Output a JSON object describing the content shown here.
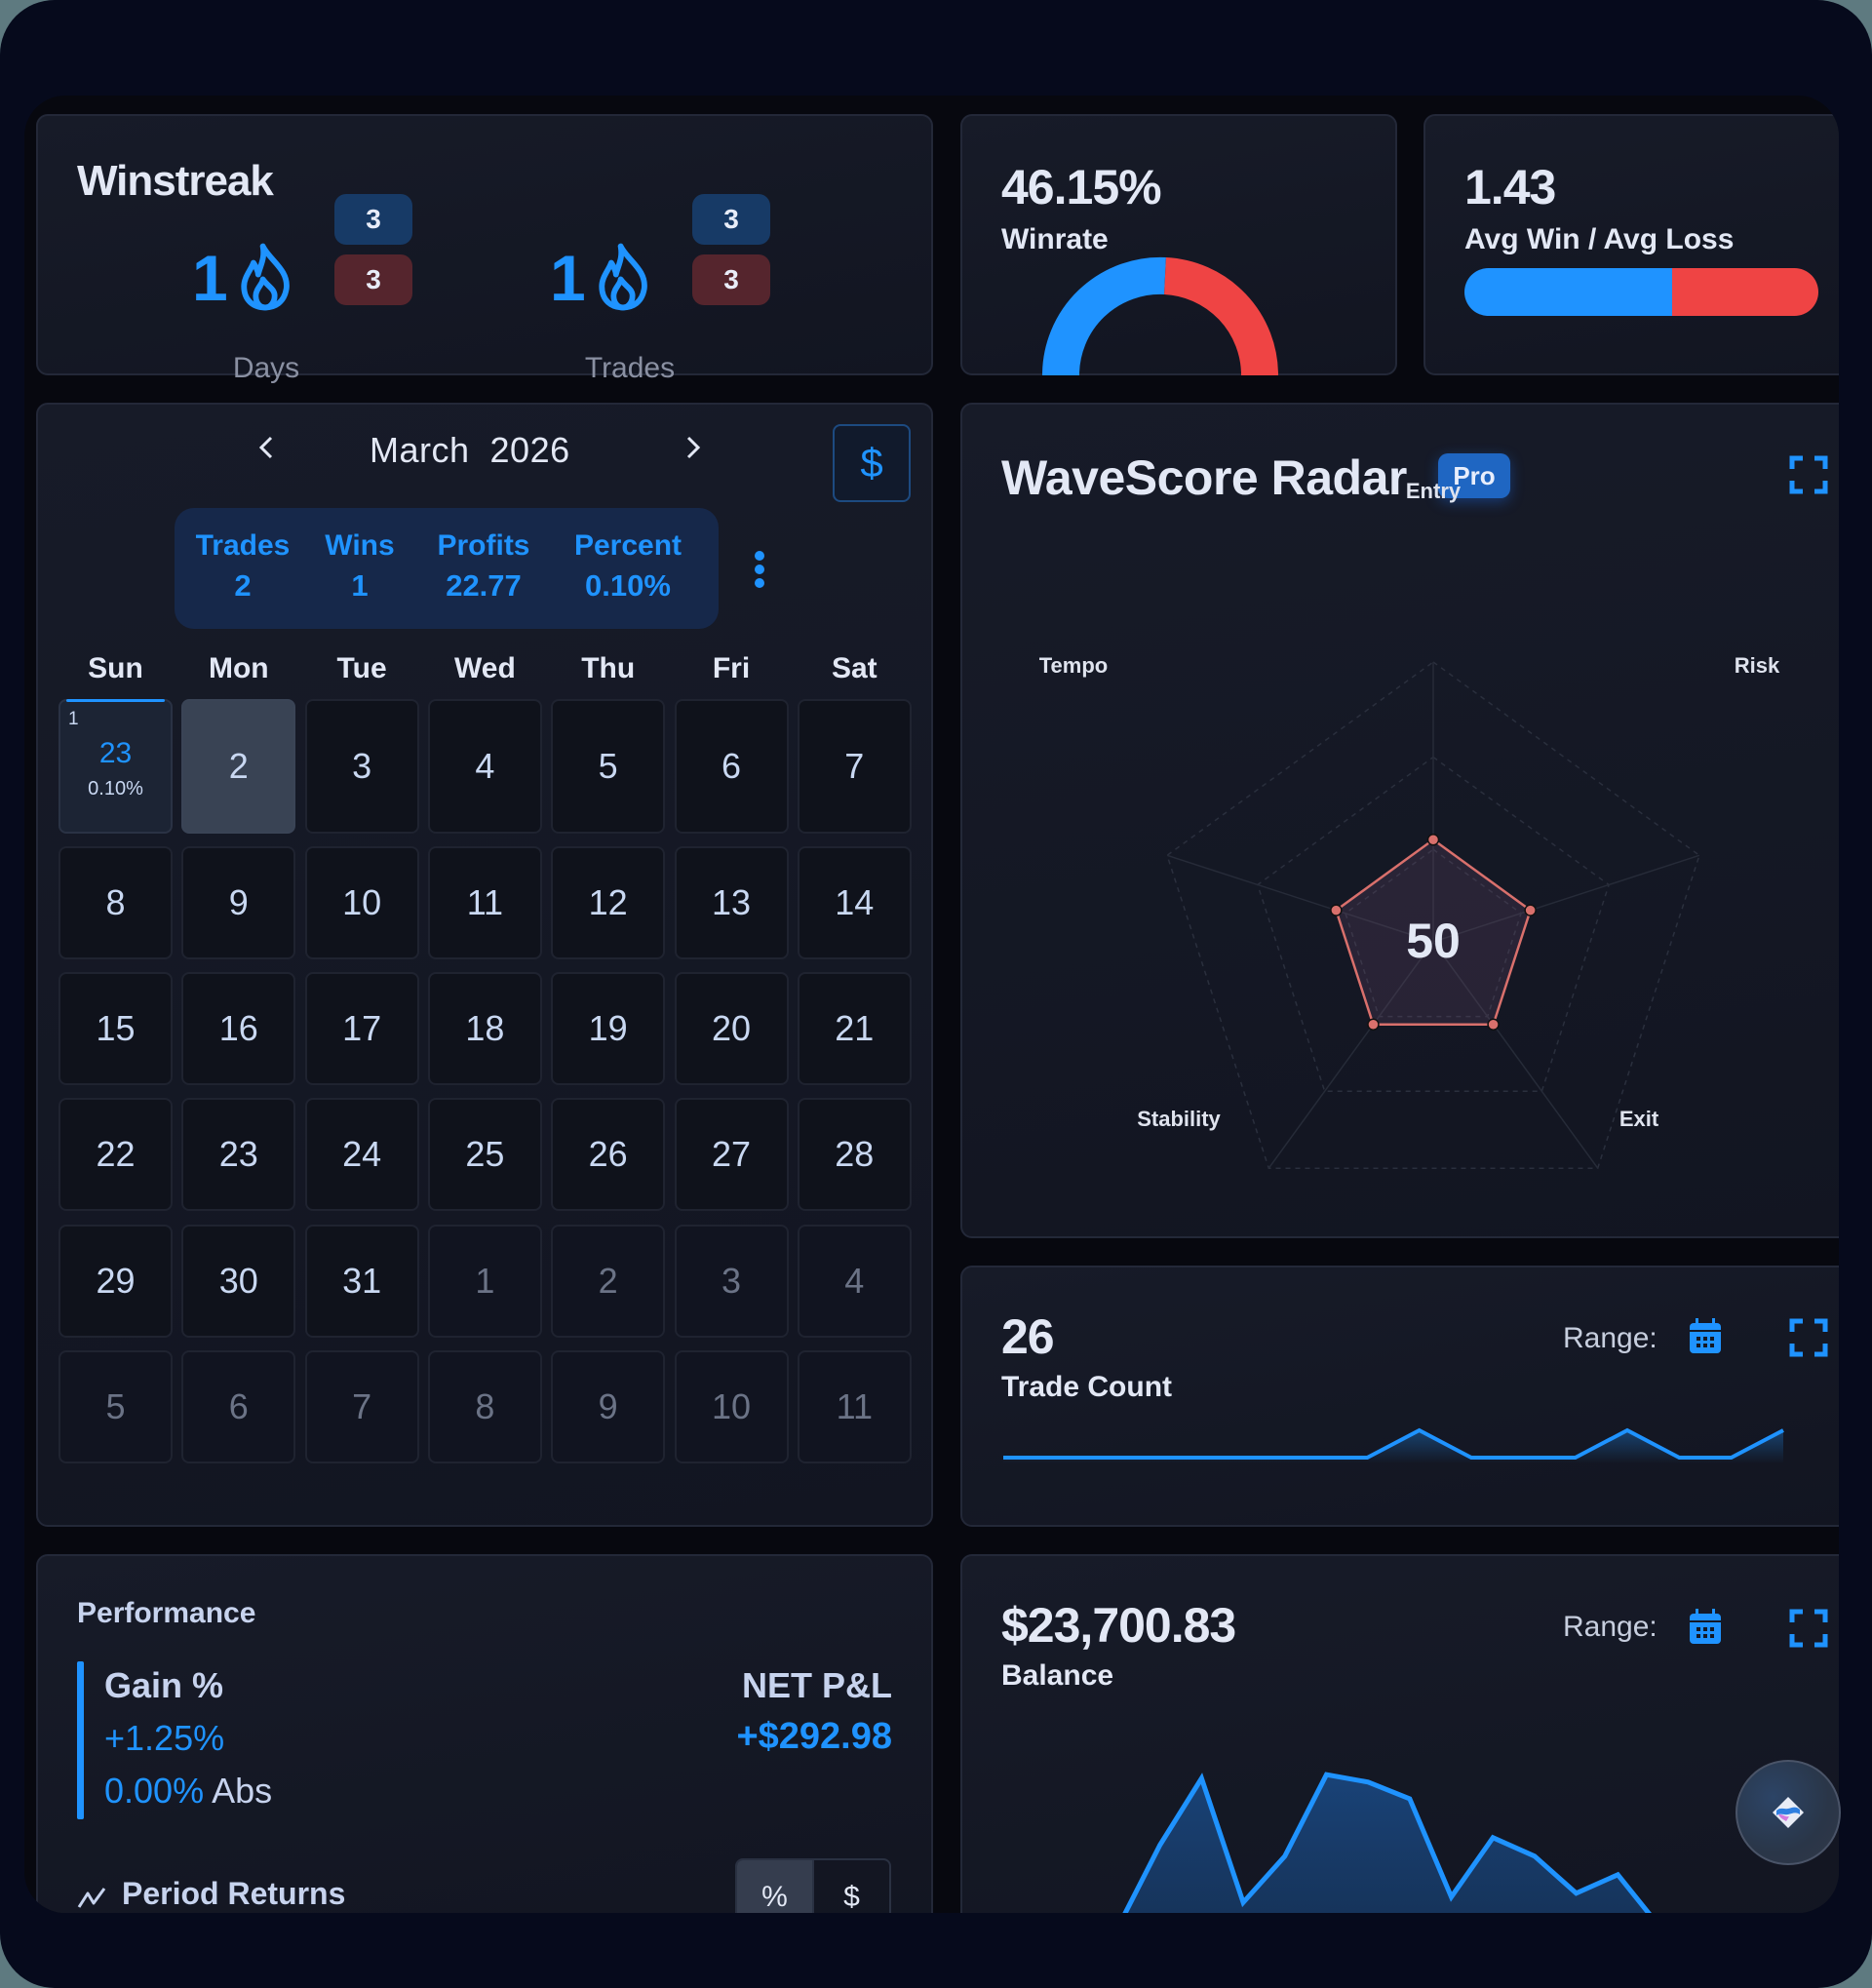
{
  "colors": {
    "accent": "#1f93ff",
    "loss": "#ef4444",
    "card_bg": "#141824",
    "frame_bg": "#060a1c",
    "radar_stroke": "#d9706c"
  },
  "winstreak": {
    "title": "Winstreak",
    "days": {
      "value": "1",
      "wins_badge": "3",
      "losses_badge": "3",
      "label": "Days"
    },
    "trades": {
      "value": "1",
      "wins_badge": "3",
      "losses_badge": "3",
      "label": "Trades"
    }
  },
  "winrate": {
    "value": "46.15%",
    "label": "Winrate",
    "win_pct": 46.15
  },
  "avg_win_loss": {
    "value": "1.43",
    "label": "Avg Win / Avg Loss",
    "win_share_pct": 58.8
  },
  "calendar": {
    "month_label": "March  2026",
    "prev_icon": "chevron-left-icon",
    "next_icon": "chevron-right-icon",
    "currency_toggle": "$",
    "summary": {
      "trades": {
        "label": "Trades",
        "value": "2"
      },
      "wins": {
        "label": "Wins",
        "value": "1"
      },
      "profits": {
        "label": "Profits",
        "value": "22.77"
      },
      "percent": {
        "label": "Percent",
        "value": "0.10%"
      }
    },
    "weekdays": [
      "Sun",
      "Mon",
      "Tue",
      "Wed",
      "Thu",
      "Fri",
      "Sat"
    ],
    "weeks": [
      [
        {
          "day": "1",
          "profit": "23",
          "percent": "0.10%",
          "type": "data"
        },
        {
          "day": "2",
          "type": "selected"
        },
        {
          "day": "3",
          "type": "current"
        },
        {
          "day": "4",
          "type": "current"
        },
        {
          "day": "5",
          "type": "current"
        },
        {
          "day": "6",
          "type": "current"
        },
        {
          "day": "7",
          "type": "current"
        }
      ],
      [
        {
          "day": "8",
          "type": "current"
        },
        {
          "day": "9",
          "type": "current"
        },
        {
          "day": "10",
          "type": "current"
        },
        {
          "day": "11",
          "type": "current"
        },
        {
          "day": "12",
          "type": "current"
        },
        {
          "day": "13",
          "type": "current"
        },
        {
          "day": "14",
          "type": "current"
        }
      ],
      [
        {
          "day": "15",
          "type": "current"
        },
        {
          "day": "16",
          "type": "current"
        },
        {
          "day": "17",
          "type": "current"
        },
        {
          "day": "18",
          "type": "current"
        },
        {
          "day": "19",
          "type": "current"
        },
        {
          "day": "20",
          "type": "current"
        },
        {
          "day": "21",
          "type": "current"
        }
      ],
      [
        {
          "day": "22",
          "type": "current"
        },
        {
          "day": "23",
          "type": "current"
        },
        {
          "day": "24",
          "type": "current"
        },
        {
          "day": "25",
          "type": "current"
        },
        {
          "day": "26",
          "type": "current"
        },
        {
          "day": "27",
          "type": "current"
        },
        {
          "day": "28",
          "type": "current"
        }
      ],
      [
        {
          "day": "29",
          "type": "current"
        },
        {
          "day": "30",
          "type": "current"
        },
        {
          "day": "31",
          "type": "current"
        },
        {
          "day": "1",
          "type": "other"
        },
        {
          "day": "2",
          "type": "other"
        },
        {
          "day": "3",
          "type": "other"
        },
        {
          "day": "4",
          "type": "other"
        }
      ],
      [
        {
          "day": "5",
          "type": "other"
        },
        {
          "day": "6",
          "type": "other"
        },
        {
          "day": "7",
          "type": "other"
        },
        {
          "day": "8",
          "type": "other"
        },
        {
          "day": "9",
          "type": "other"
        },
        {
          "day": "10",
          "type": "other"
        },
        {
          "day": "11",
          "type": "other"
        }
      ]
    ]
  },
  "radar": {
    "title": "WaveScore Radar",
    "badge": "Pro",
    "score": "50",
    "axes": [
      "Entry",
      "Risk",
      "Exit",
      "Stability",
      "Tempo"
    ],
    "values": [
      50,
      50,
      50,
      50,
      50
    ],
    "max": 100
  },
  "trade_count": {
    "value": "26",
    "label": "Trade Count",
    "range_label": "Range:",
    "series": [
      0,
      0,
      0,
      0,
      0,
      0,
      0,
      0,
      1,
      0,
      0,
      0,
      1,
      0,
      0,
      1
    ]
  },
  "balance": {
    "value": "$23,700.83",
    "label": "Balance",
    "range_label": "Range:",
    "series": [
      0.0,
      0.44,
      0.8,
      0.13,
      0.38,
      0.82,
      0.78,
      0.69,
      0.16,
      0.48,
      0.38,
      0.18,
      0.28,
      0.0
    ]
  },
  "performance": {
    "title": "Performance",
    "gain_label": "Gain %",
    "gain_value": "+1.25%",
    "abs_value": "0.00%",
    "abs_suffix": "Abs",
    "pnl_label": "NET P&L",
    "pnl_value": "+$292.98",
    "period_returns_label": "Period Returns",
    "toggle": {
      "percent": "%",
      "dollar": "$",
      "active": "percent"
    }
  },
  "chart_data": [
    {
      "type": "pie",
      "title": "Winrate",
      "categories": [
        "Wins",
        "Losses"
      ],
      "values": [
        46.15,
        53.85
      ],
      "colors": [
        "#1f93ff",
        "#ef4444"
      ],
      "style": "half-donut"
    },
    {
      "type": "radar",
      "title": "WaveScore Radar",
      "categories": [
        "Entry",
        "Risk",
        "Exit",
        "Stability",
        "Tempo"
      ],
      "values": [
        50,
        50,
        50,
        50,
        50
      ],
      "center_label": "50",
      "range": [
        0,
        100
      ]
    },
    {
      "type": "line",
      "title": "Trade Count",
      "summary_value": 26,
      "values": [
        0,
        0,
        0,
        0,
        0,
        0,
        0,
        0,
        1,
        0,
        0,
        0,
        1,
        0,
        0,
        1
      ]
    },
    {
      "type": "area",
      "title": "Balance",
      "summary_value": "$23,700.83",
      "values_normalized": [
        0.0,
        0.44,
        0.8,
        0.13,
        0.38,
        0.82,
        0.78,
        0.69,
        0.16,
        0.48,
        0.38,
        0.18,
        0.28,
        0.0
      ]
    }
  ]
}
